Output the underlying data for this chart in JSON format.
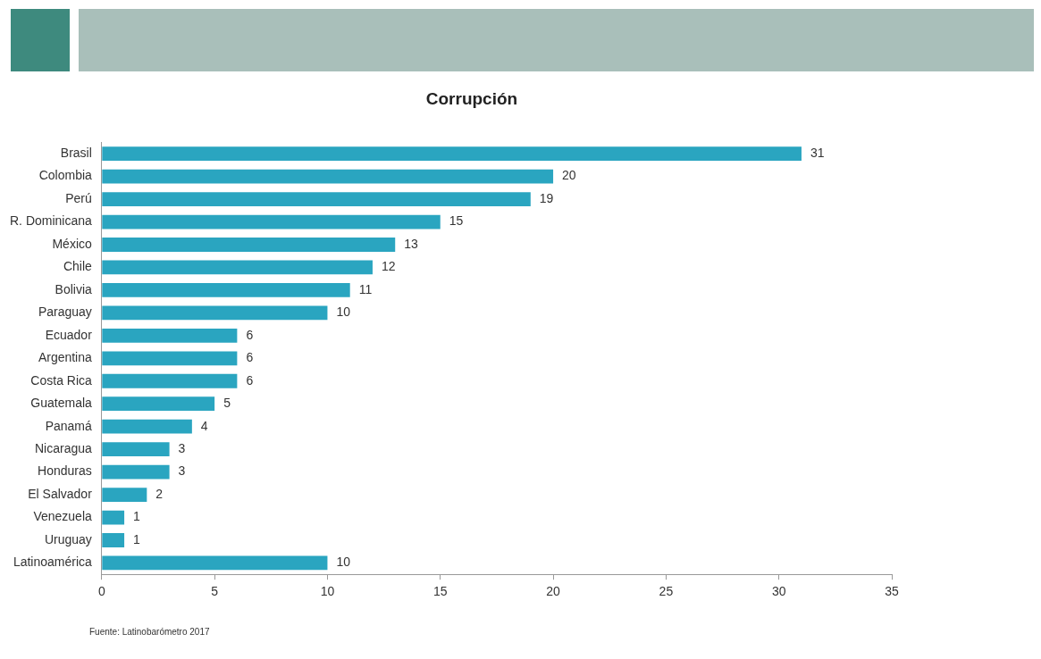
{
  "chart_data": {
    "type": "bar",
    "title": "Corrupción",
    "orientation": "horizontal",
    "categories": [
      "Brasil",
      "Colombia",
      "Perú",
      "R. Dominicana",
      "México",
      "Chile",
      "Bolivia",
      "Paraguay",
      "Ecuador",
      "Argentina",
      "Costa Rica",
      "Guatemala",
      "Panamá",
      "Nicaragua",
      "Honduras",
      "El Salvador",
      "Venezuela",
      "Uruguay",
      "Latinoamérica"
    ],
    "values": [
      31,
      20,
      19,
      15,
      13,
      12,
      11,
      10,
      6,
      6,
      6,
      5,
      4,
      3,
      3,
      2,
      1,
      1,
      10
    ],
    "color": "#2aa5c0",
    "xlim": [
      0,
      35
    ],
    "xticks": [
      0,
      5,
      10,
      15,
      20,
      25,
      30,
      35
    ],
    "grid": false,
    "data_labels": true,
    "annotations": [
      "Fuente: Latinobarómetro 2017"
    ]
  }
}
